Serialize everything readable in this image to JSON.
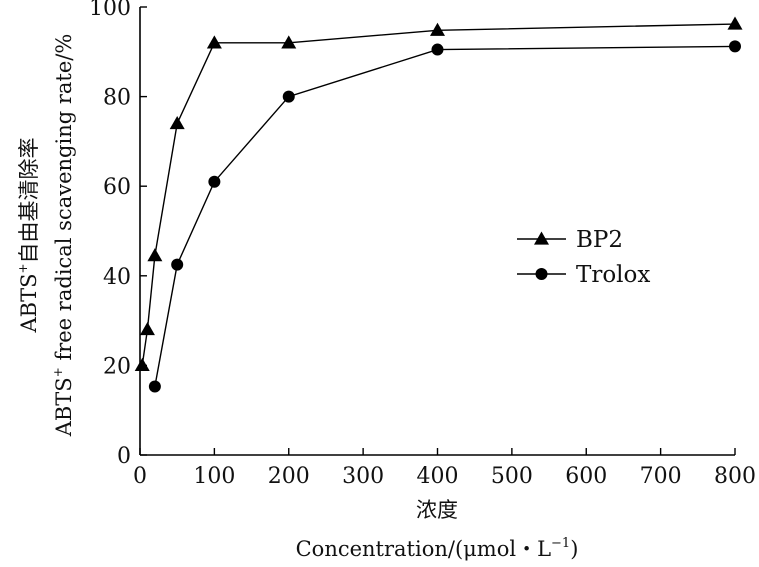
{
  "chart_data": {
    "type": "line",
    "xlabel_cn": "浓度",
    "xlabel_en": "Concentration/(μmol・L",
    "xlabel_en_sup": "−1",
    "xlabel_en_tail": ")",
    "ylabel_cn_prefix": "ABTS",
    "ylabel_cn_sup": "+",
    "ylabel_cn_rest": "自由基清除率",
    "ylabel_en_prefix": "ABTS",
    "ylabel_en_sup": "+",
    "ylabel_en_rest": " free radical scavenging rate/%",
    "xlim": [
      0,
      800
    ],
    "ylim": [
      0,
      100
    ],
    "x_ticks": [
      0,
      100,
      200,
      300,
      400,
      500,
      600,
      700,
      800
    ],
    "y_ticks": [
      0,
      20,
      40,
      60,
      80,
      100
    ],
    "grid": false,
    "legend_position": "center-right",
    "series": [
      {
        "name": "BP2",
        "marker": "triangle",
        "color": "#000000",
        "points": [
          [
            3,
            20
          ],
          [
            10,
            28
          ],
          [
            20,
            44.5
          ],
          [
            50,
            74
          ],
          [
            100,
            92
          ],
          [
            200,
            92
          ],
          [
            400,
            94.8
          ],
          [
            800,
            96.2
          ]
        ]
      },
      {
        "name": "Trolox",
        "marker": "circle",
        "color": "#000000",
        "points": [
          [
            20,
            15.3
          ],
          [
            50,
            42.5
          ],
          [
            100,
            61
          ],
          [
            200,
            80
          ],
          [
            400,
            90.5
          ],
          [
            800,
            91.2
          ]
        ]
      }
    ]
  }
}
